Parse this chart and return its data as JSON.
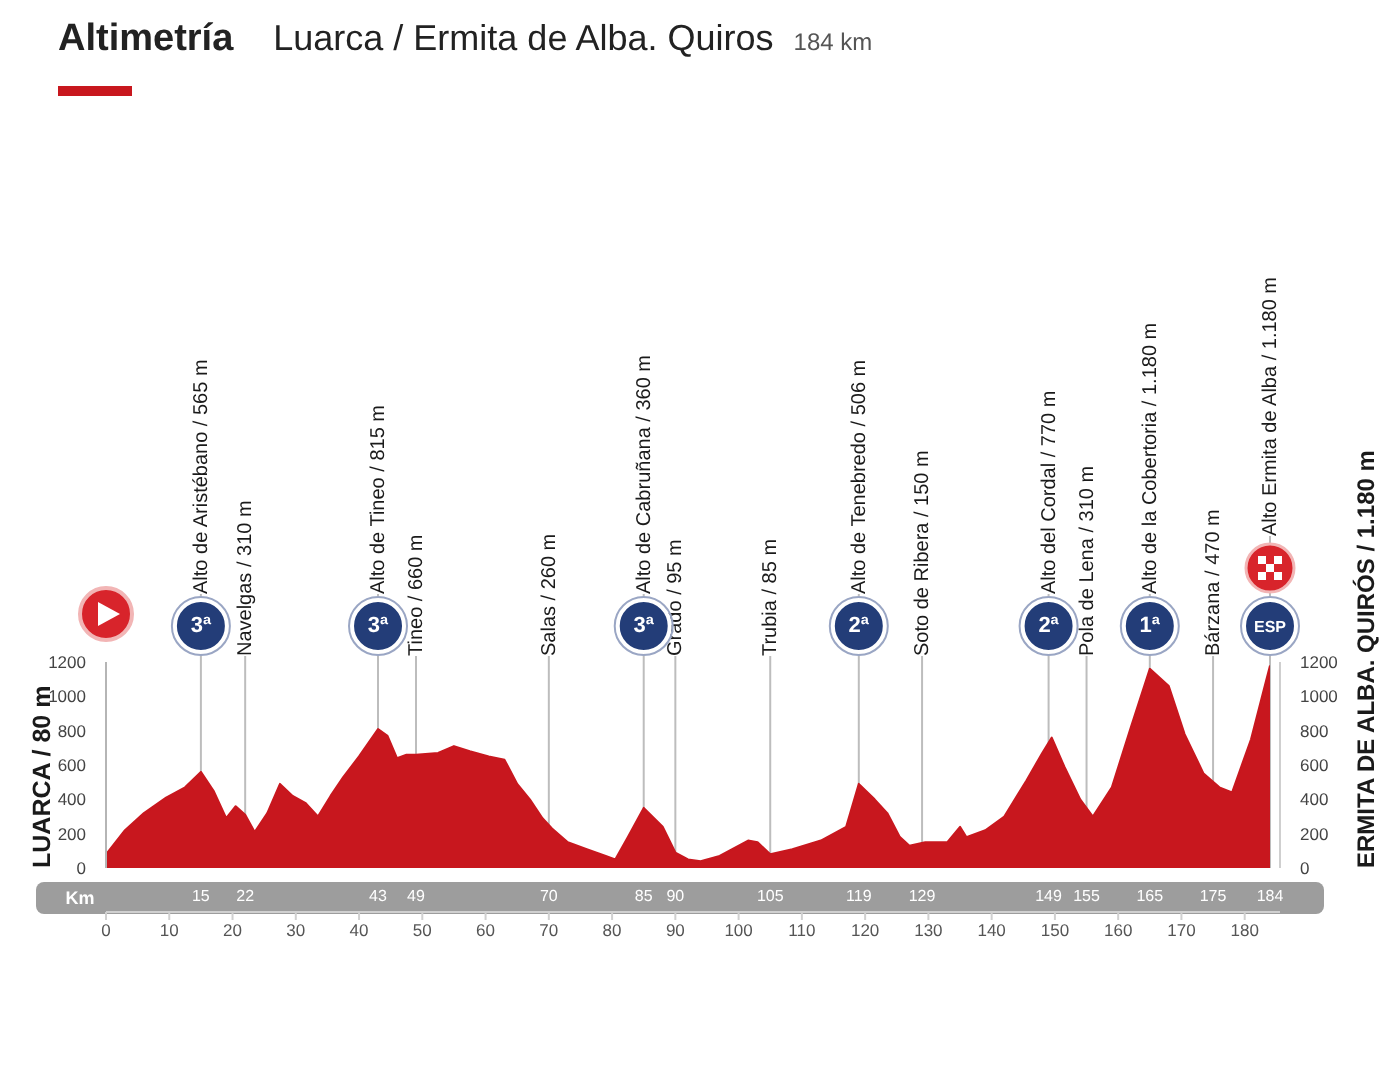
{
  "chart_data": {
    "type": "area",
    "title": "Altimetría",
    "subtitle": "Luarca / Ermita de Alba. Quiros",
    "ylabel": "LUARCA / 80 m",
    "y2label": "ERMITA DE ALBA. QUIRÓS / 1.180 m",
    "x2label": "Km",
    "annotations": [
      "184 km",
      {
        "text": "3ª",
        "x": 15,
        "y": 1200
      },
      {
        "text": "3ª",
        "x": 43,
        "y": 1200
      },
      {
        "text": "3ª",
        "x": 85,
        "y": 1200
      },
      {
        "text": "2ª",
        "x": 119,
        "y": 1200
      },
      {
        "text": "2ª",
        "x": 149,
        "y": 1200
      },
      {
        "text": "1ª",
        "x": 165,
        "y": 1200
      },
      {
        "text": "ESP",
        "x": 184,
        "y": 1200
      }
    ],
    "x": [
      0,
      3,
      6,
      9.5,
      12.5,
      15,
      17,
      19,
      20.5,
      22,
      23.5,
      25.5,
      27.5,
      29.5,
      31.5,
      33.5,
      35.5,
      37.5,
      40,
      43,
      44.5,
      46,
      47.5,
      49,
      52.5,
      55,
      57.5,
      60.5,
      63,
      65,
      67,
      69,
      70.5,
      73,
      76,
      79,
      80.5,
      82.5,
      85,
      88,
      90,
      92,
      94,
      97,
      101.5,
      103,
      105,
      108.5,
      113,
      117,
      119,
      121.5,
      123.5,
      125.5,
      127,
      129.5,
      133,
      135,
      136,
      139,
      142,
      145.5,
      148,
      149.5,
      151.5,
      154,
      156,
      159,
      162,
      165,
      168,
      170.5,
      173.5,
      176,
      178,
      181,
      184
    ],
    "values": [
      80,
      220,
      320,
      410,
      470,
      560,
      450,
      290,
      360,
      310,
      210,
      320,
      490,
      420,
      380,
      300,
      420,
      530,
      650,
      810,
      770,
      640,
      660,
      660,
      670,
      710,
      680,
      650,
      630,
      490,
      400,
      290,
      230,
      150,
      110,
      70,
      50,
      180,
      350,
      240,
      90,
      50,
      40,
      70,
      160,
      150,
      80,
      110,
      160,
      240,
      490,
      400,
      320,
      180,
      130,
      150,
      150,
      240,
      180,
      220,
      300,
      510,
      670,
      760,
      590,
      400,
      300,
      470,
      820,
      1160,
      1060,
      780,
      550,
      470,
      440,
      750,
      1180
    ],
    "color": "#c8171e",
    "xlim": [
      0,
      184
    ],
    "xticks": [
      0,
      10,
      20,
      30,
      40,
      50,
      60,
      70,
      80,
      90,
      100,
      110,
      120,
      130,
      140,
      150,
      160,
      170,
      180
    ],
    "x2lim": [
      0,
      184
    ],
    "x2ticks": [
      15,
      22,
      43,
      49,
      70,
      85,
      90,
      105,
      119,
      129,
      149,
      155,
      165,
      175,
      184
    ],
    "ylim": [
      0,
      1200
    ],
    "yticks": [
      0,
      200,
      400,
      600,
      800,
      1000,
      1200
    ],
    "y2lim": [
      0,
      1200
    ],
    "y2ticks": [
      0,
      200,
      400,
      600,
      800,
      1000,
      1200
    ],
    "ref_lines": [
      {
        "axis": "x",
        "value": 15,
        "label": "Alto de Aristébano / 565 m"
      },
      {
        "axis": "x",
        "value": 22,
        "label": "Navelgas / 310 m"
      },
      {
        "axis": "x",
        "value": 43,
        "label": "Alto de Tineo / 815 m"
      },
      {
        "axis": "x",
        "value": 49,
        "label": "Tineo / 660 m"
      },
      {
        "axis": "x",
        "value": 70,
        "label": "Salas / 260 m"
      },
      {
        "axis": "x",
        "value": 85,
        "label": "Alto de Cabruñana / 360 m"
      },
      {
        "axis": "x",
        "value": 90,
        "label": "Grado / 95 m"
      },
      {
        "axis": "x",
        "value": 105,
        "label": "Trubia / 85 m"
      },
      {
        "axis": "x",
        "value": 119,
        "label": "Alto de Tenebredo / 506 m"
      },
      {
        "axis": "x",
        "value": 129,
        "label": "Soto de Ribera / 150 m"
      },
      {
        "axis": "x",
        "value": 149,
        "label": "Alto del Cordal / 770 m"
      },
      {
        "axis": "x",
        "value": 155,
        "label": "Pola de Lena / 310 m"
      },
      {
        "axis": "x",
        "value": 165,
        "label": "Alto de la Cobertoria / 1.180 m"
      },
      {
        "axis": "x",
        "value": 175,
        "label": "Bárzana / 470 m"
      },
      {
        "axis": "x",
        "value": 184,
        "label": "Alto Ermita de Alba / 1.180 m"
      }
    ]
  }
}
